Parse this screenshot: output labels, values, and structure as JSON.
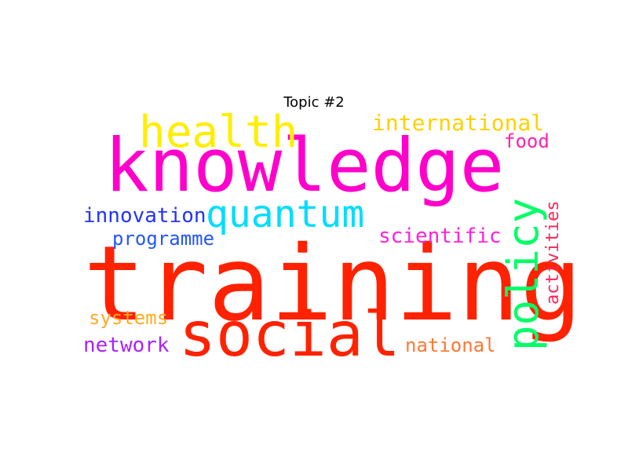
{
  "title": "Topic #2",
  "words": [
    {
      "text": "knowledge",
      "color": "#ff00cc"
    },
    {
      "text": "training",
      "color": "#ff2200"
    },
    {
      "text": "social",
      "color": "#ff2200"
    },
    {
      "text": "health",
      "color": "#ffee00"
    },
    {
      "text": "quantum",
      "color": "#00ddff"
    },
    {
      "text": "policy",
      "color": "#00ff66"
    },
    {
      "text": "international",
      "color": "#ffd000"
    },
    {
      "text": "food",
      "color": "#ff22aa"
    },
    {
      "text": "innovation",
      "color": "#2233ff"
    },
    {
      "text": "programme",
      "color": "#2255ff"
    },
    {
      "text": "scientific",
      "color": "#ff22dd"
    },
    {
      "text": "activities",
      "color": "#ff2255"
    },
    {
      "text": "systems",
      "color": "#ffaa22"
    },
    {
      "text": "network",
      "color": "#aa22ff"
    },
    {
      "text": "national",
      "color": "#ff7733"
    }
  ]
}
